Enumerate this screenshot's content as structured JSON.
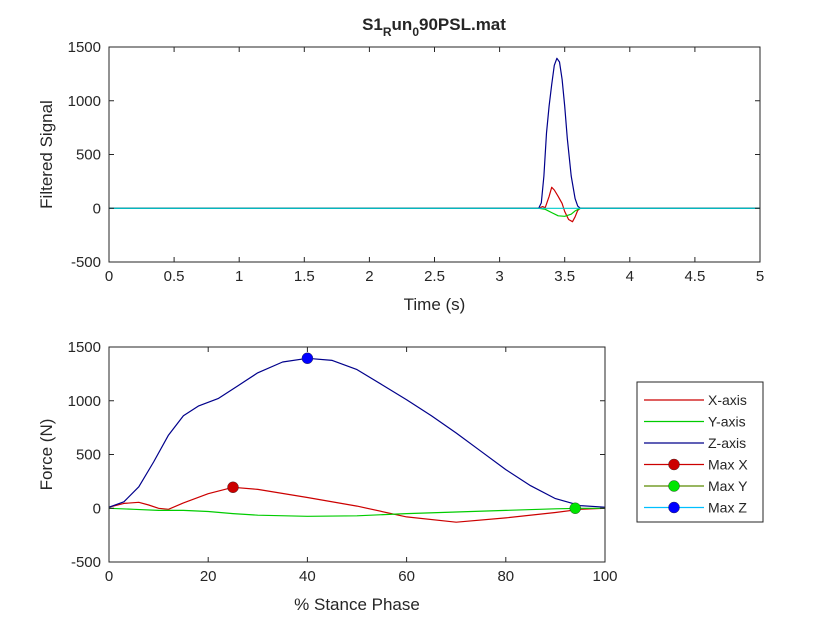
{
  "figure": {
    "title_main": "S1",
    "title_sub1": "R",
    "title_mid": "un",
    "title_sub2": "0",
    "title_end": "90PSL.mat"
  },
  "chart_data": [
    {
      "type": "line",
      "title": "S1_Run_090PSL.mat",
      "xlabel": "Time (s)",
      "ylabel": "Filtered Signal",
      "xlim": [
        0,
        5
      ],
      "ylim": [
        -500,
        1500
      ],
      "xticks": [
        0,
        0.5,
        1,
        1.5,
        2,
        2.5,
        3,
        3.5,
        4,
        4.5,
        5
      ],
      "xtick_labels": [
        "0",
        "0.5",
        "1",
        "1.5",
        "2",
        "2.5",
        "3",
        "3.5",
        "4",
        "4.5",
        "5"
      ],
      "yticks": [
        -500,
        0,
        500,
        1000,
        1500
      ],
      "ytick_labels": [
        "-500",
        "0",
        "500",
        "1000",
        "1500"
      ],
      "grid": false,
      "series": [
        {
          "color": "#cc0000",
          "x": [
            0,
            3.3,
            3.33,
            3.35,
            3.38,
            3.4,
            3.42,
            3.45,
            3.48,
            3.5,
            3.53,
            3.56,
            3.58,
            3.6,
            3.62,
            5
          ],
          "values": [
            0,
            0,
            15,
            5,
            110,
            195,
            170,
            110,
            45,
            -30,
            -105,
            -125,
            -80,
            -20,
            0,
            0
          ]
        },
        {
          "color": "#00cc00",
          "x": [
            0,
            3.3,
            3.35,
            3.4,
            3.45,
            3.5,
            3.55,
            3.58,
            3.62,
            5
          ],
          "values": [
            0,
            0,
            -10,
            -40,
            -70,
            -75,
            -55,
            -25,
            0,
            0
          ]
        },
        {
          "color": "#00008b",
          "x": [
            0,
            3.3,
            3.32,
            3.34,
            3.36,
            3.38,
            3.4,
            3.42,
            3.44,
            3.46,
            3.48,
            3.5,
            3.52,
            3.55,
            3.58,
            3.6,
            3.62,
            5
          ],
          "values": [
            0,
            0,
            50,
            300,
            700,
            950,
            1150,
            1330,
            1395,
            1360,
            1200,
            950,
            650,
            300,
            90,
            20,
            0,
            0
          ]
        },
        {
          "color": "#00cccc",
          "x": [
            0,
            5
          ],
          "values": [
            0,
            0
          ]
        }
      ]
    },
    {
      "type": "line",
      "xlabel": "% Stance Phase",
      "ylabel": "Force (N)",
      "xlim": [
        0,
        100
      ],
      "ylim": [
        -500,
        1500
      ],
      "xticks": [
        0,
        20,
        40,
        60,
        80,
        100
      ],
      "xtick_labels": [
        "0",
        "20",
        "40",
        "60",
        "80",
        "100"
      ],
      "yticks": [
        -500,
        0,
        500,
        1000,
        1500
      ],
      "ytick_labels": [
        "-500",
        "0",
        "500",
        "1000",
        "1500"
      ],
      "grid": false,
      "legend": "outside-right",
      "series": [
        {
          "name": "X-axis",
          "color": "#cc0000",
          "x": [
            0,
            3,
            6,
            8,
            10,
            12,
            15,
            20,
            25,
            30,
            40,
            50,
            60,
            70,
            80,
            90,
            95,
            100
          ],
          "values": [
            10,
            45,
            55,
            30,
            0,
            -10,
            50,
            135,
            195,
            175,
            100,
            20,
            -80,
            -130,
            -90,
            -40,
            -10,
            0
          ]
        },
        {
          "name": "Y-axis",
          "color": "#00cc00",
          "x": [
            0,
            5,
            10,
            15,
            20,
            25,
            30,
            40,
            50,
            60,
            70,
            80,
            90,
            95,
            100
          ],
          "values": [
            0,
            -10,
            -20,
            -20,
            -30,
            -50,
            -65,
            -75,
            -70,
            -50,
            -35,
            -20,
            -5,
            0,
            0
          ]
        },
        {
          "name": "Z-axis",
          "color": "#00008b",
          "x": [
            0,
            3,
            6,
            9,
            12,
            15,
            18,
            22,
            26,
            30,
            35,
            40,
            45,
            50,
            55,
            60,
            65,
            70,
            75,
            80,
            85,
            90,
            95,
            100
          ],
          "values": [
            10,
            60,
            200,
            430,
            680,
            860,
            950,
            1020,
            1140,
            1260,
            1360,
            1395,
            1375,
            1290,
            1150,
            1010,
            860,
            700,
            530,
            360,
            210,
            90,
            25,
            10
          ]
        },
        {
          "name": "Max X",
          "color": "#cc0000",
          "marker": true,
          "x": [
            25
          ],
          "values": [
            195
          ]
        },
        {
          "name": "Max Y",
          "color": "#00e600",
          "marker": true,
          "x": [
            94
          ],
          "values": [
            0
          ]
        },
        {
          "name": "Max Z",
          "color": "#0000ff",
          "marker": true,
          "x": [
            40
          ],
          "values": [
            1395
          ]
        }
      ]
    }
  ]
}
